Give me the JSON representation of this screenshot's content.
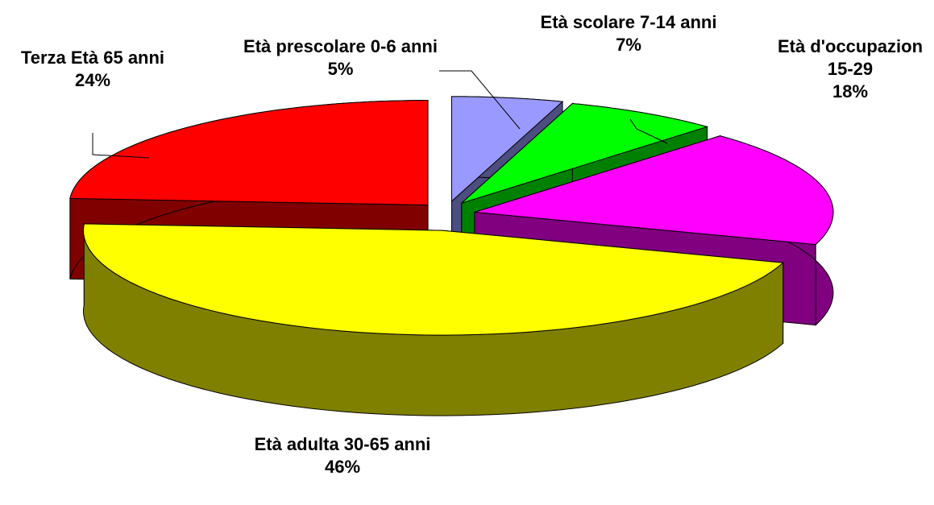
{
  "chart_data": {
    "type": "pie3d",
    "categories": [
      "Età prescolare 0-6 anni",
      "Età scolare 7-14 anni",
      "Età d'occupazion 15-29",
      "Età adulta 30-65 anni",
      "Terza Età 65 anni"
    ],
    "values": [
      5,
      7,
      18,
      46,
      24
    ],
    "value_labels": [
      "5%",
      "7%",
      "18%",
      "46%",
      "24%"
    ],
    "colors": [
      "#9999ff",
      "#00ff00",
      "#ff00ff",
      "#ffff00",
      "#ff0000"
    ]
  }
}
